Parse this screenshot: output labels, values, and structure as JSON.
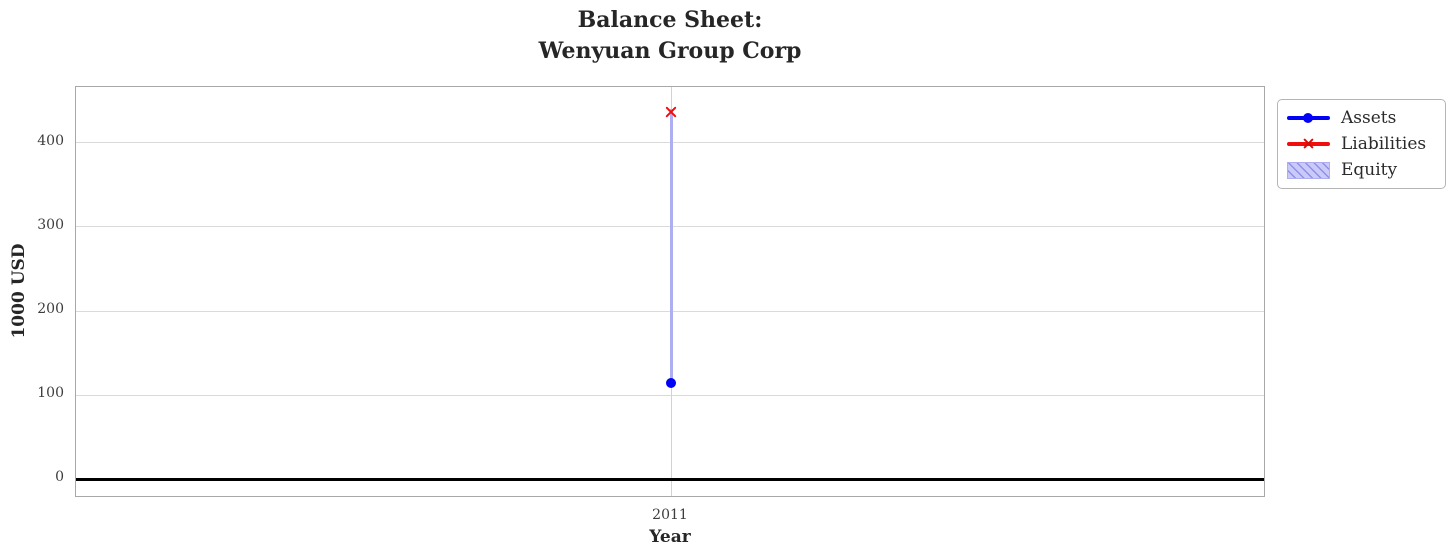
{
  "chart_data": {
    "type": "line",
    "title": "Balance Sheet:\nWenyuan Group Corp",
    "xlabel": "Year",
    "ylabel": "1000 USD",
    "x": [
      2011
    ],
    "xtick_labels": [
      "2011"
    ],
    "yticks": [
      0,
      100,
      200,
      300,
      400
    ],
    "xlim": [
      2010.5,
      2011.5
    ],
    "ylim": [
      -22,
      466
    ],
    "grid": true,
    "zero_line_y": 0,
    "legend_position": "outside upper right",
    "series": [
      {
        "name": "Assets",
        "type": "line",
        "marker": "circle",
        "color": "#0202f5",
        "values": [
          114
        ]
      },
      {
        "name": "Liabilities",
        "type": "line",
        "marker": "x",
        "color": "#f20d0d",
        "values": [
          440
        ]
      },
      {
        "name": "Equity",
        "type": "hatched-band",
        "color": "#cacaf9",
        "hatch_color": "#8f8fe8",
        "edge_color": "#aeaef2",
        "visible_band": [
          114,
          440
        ]
      }
    ]
  }
}
